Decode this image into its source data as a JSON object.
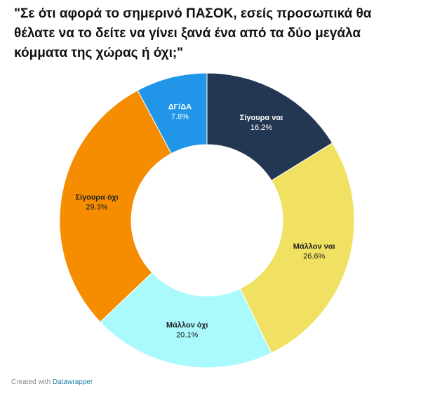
{
  "chart_data": {
    "type": "donut",
    "title": "\"Σε ότι αφορά το σημερινό ΠΑΣΟΚ, εσείς προσωπικά θα θέλατε να το δείτε να γίνει ξανά ένα από τα δύο μεγάλα κόμματα της χώρας ή όχι;\"",
    "categories": [
      "Σίγουρα ναι",
      "Μάλλον ναι",
      "Μάλλον όχι",
      "Σίγουρα όχι",
      "ΔΓ/ΔΑ"
    ],
    "values": [
      16.2,
      26.6,
      20.1,
      29.3,
      7.8
    ],
    "value_labels": [
      "16.2%",
      "26.6%",
      "20.1%",
      "29.3%",
      "7.8%"
    ],
    "colors": [
      "#243752",
      "#f0e163",
      "#aaf9fc",
      "#f68c00",
      "#2196e8"
    ]
  },
  "footer": {
    "prefix": "Created with",
    "link": "Datawrapper"
  }
}
